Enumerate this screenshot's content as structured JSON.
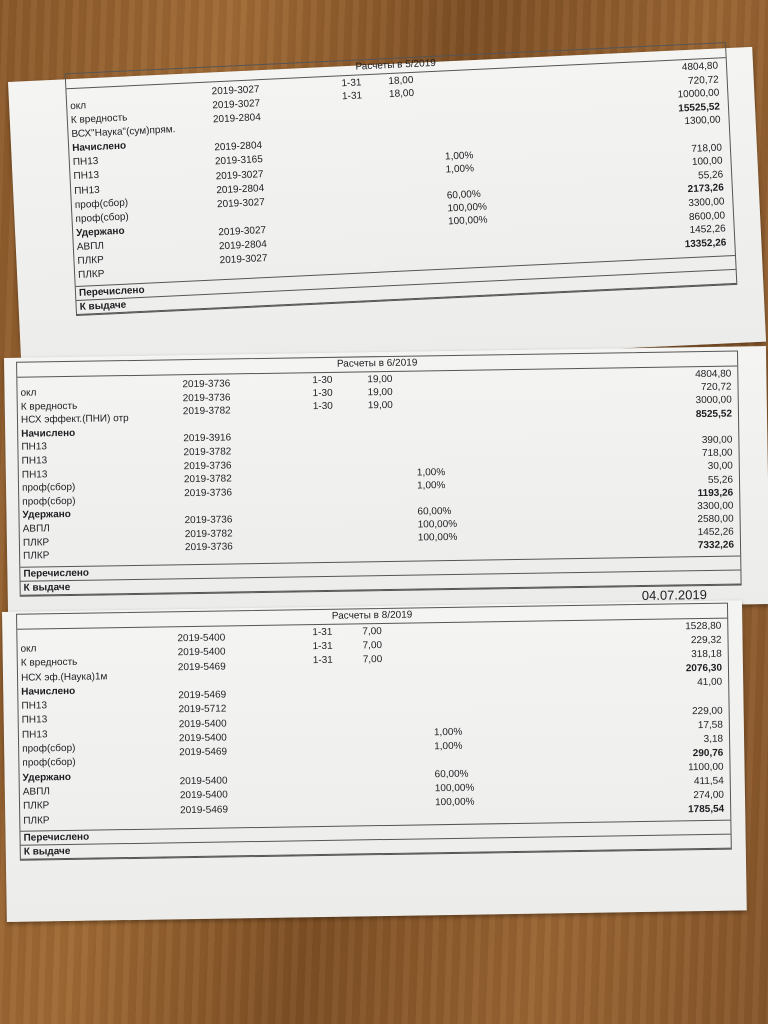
{
  "slips": [
    {
      "title": "Расчеты в 5/2019",
      "labels": [
        "окл",
        "К вредность",
        "ВСХ\"Наука\"(сум)прям.",
        "Начислено",
        "ПН13",
        "ПН13",
        "ПН13",
        "проф(сбор)",
        "проф(сбор)",
        "Удержано",
        "АВПЛ",
        "ПЛКР",
        "ПЛКР"
      ],
      "bold_labels": [
        "Начислено",
        "Удержано"
      ],
      "codes": [
        "2019-3027",
        "2019-3027",
        "2019-2804",
        "",
        "2019-2804",
        "2019-3165",
        "2019-3027",
        "2019-2804",
        "2019-3027",
        "",
        "2019-3027",
        "2019-2804",
        "2019-3027"
      ],
      "periods": [
        "1-31",
        "1-31"
      ],
      "days": [
        "18,00",
        "18,00"
      ],
      "percents": [
        "1,00%",
        "1,00%",
        "",
        "60,00%",
        "100,00%",
        "100,00%"
      ],
      "amounts": [
        {
          "value": "4804,80",
          "bold": false
        },
        {
          "value": "720,72",
          "bold": false
        },
        {
          "value": "10000,00",
          "bold": false
        },
        {
          "value": "15525,52",
          "bold": true
        },
        {
          "value": "1300,00",
          "bold": false
        },
        {
          "value": "",
          "bold": false
        },
        {
          "value": "718,00",
          "bold": false
        },
        {
          "value": "100,00",
          "bold": false
        },
        {
          "value": "55,26",
          "bold": false
        },
        {
          "value": "2173,26",
          "bold": true
        },
        {
          "value": "3300,00",
          "bold": false
        },
        {
          "value": "8600,00",
          "bold": false
        },
        {
          "value": "1452,26",
          "bold": false
        },
        {
          "value": "13352,26",
          "bold": true
        }
      ],
      "transferred_label": "Перечислено",
      "payout_label": "К выдаче",
      "date": ""
    },
    {
      "title": "Расчеты в 6/2019",
      "labels": [
        "окл",
        "К вредность",
        "НСХ эффект.(ПНИ) отр",
        "Начислено",
        "ПН13",
        "ПН13",
        "ПН13",
        "проф(сбор)",
        "проф(сбор)",
        "Удержано",
        "АВПЛ",
        "ПЛКР",
        "ПЛКР"
      ],
      "bold_labels": [
        "Начислено",
        "Удержано"
      ],
      "codes": [
        "2019-3736",
        "2019-3736",
        "2019-3782",
        "",
        "2019-3916",
        "2019-3782",
        "2019-3736",
        "2019-3782",
        "2019-3736",
        "",
        "2019-3736",
        "2019-3782",
        "2019-3736"
      ],
      "periods": [
        "1-30",
        "1-30",
        "1-30"
      ],
      "days": [
        "19,00",
        "19,00",
        "19,00"
      ],
      "percents": [
        "1,00%",
        "1,00%",
        "",
        "60,00%",
        "100,00%",
        "100,00%"
      ],
      "amounts": [
        {
          "value": "4804,80",
          "bold": false
        },
        {
          "value": "720,72",
          "bold": false
        },
        {
          "value": "3000,00",
          "bold": false
        },
        {
          "value": "8525,52",
          "bold": true
        },
        {
          "value": "",
          "bold": false
        },
        {
          "value": "390,00",
          "bold": false
        },
        {
          "value": "718,00",
          "bold": false
        },
        {
          "value": "30,00",
          "bold": false
        },
        {
          "value": "55,26",
          "bold": false
        },
        {
          "value": "1193,26",
          "bold": true
        },
        {
          "value": "3300,00",
          "bold": false
        },
        {
          "value": "2580,00",
          "bold": false
        },
        {
          "value": "1452,26",
          "bold": false
        },
        {
          "value": "7332,26",
          "bold": true
        }
      ],
      "transferred_label": "Перечислено",
      "payout_label": "К выдаче",
      "date": "04.07.2019"
    },
    {
      "title": "Расчеты в 8/2019",
      "labels": [
        "окл",
        "К вредность",
        "НСХ эф.(Наука)1м",
        "Начислено",
        "ПН13",
        "ПН13",
        "ПН13",
        "проф(сбор)",
        "проф(сбор)",
        "Удержано",
        "АВПЛ",
        "ПЛКР",
        "ПЛКР"
      ],
      "bold_labels": [
        "Начислено",
        "Удержано"
      ],
      "codes": [
        "2019-5400",
        "2019-5400",
        "2019-5469",
        "",
        "2019-5469",
        "2019-5712",
        "2019-5400",
        "2019-5400",
        "2019-5469",
        "",
        "2019-5400",
        "2019-5400",
        "2019-5469"
      ],
      "periods": [
        "1-31",
        "1-31",
        "1-31"
      ],
      "days": [
        "7,00",
        "7,00",
        "7,00"
      ],
      "percents": [
        "1,00%",
        "1,00%",
        "",
        "60,00%",
        "100,00%",
        "100,00%"
      ],
      "amounts": [
        {
          "value": "1528,80",
          "bold": false
        },
        {
          "value": "229,32",
          "bold": false
        },
        {
          "value": "318,18",
          "bold": false
        },
        {
          "value": "2076,30",
          "bold": true
        },
        {
          "value": "41,00",
          "bold": false
        },
        {
          "value": "",
          "bold": false
        },
        {
          "value": "229,00",
          "bold": false
        },
        {
          "value": "17,58",
          "bold": false
        },
        {
          "value": "3,18",
          "bold": false
        },
        {
          "value": "290,76",
          "bold": true
        },
        {
          "value": "1100,00",
          "bold": false
        },
        {
          "value": "411,54",
          "bold": false
        },
        {
          "value": "274,00",
          "bold": false
        },
        {
          "value": "1785,54",
          "bold": true
        }
      ],
      "transferred_label": "Перечислено",
      "payout_label": "К выдаче",
      "date": ""
    }
  ]
}
